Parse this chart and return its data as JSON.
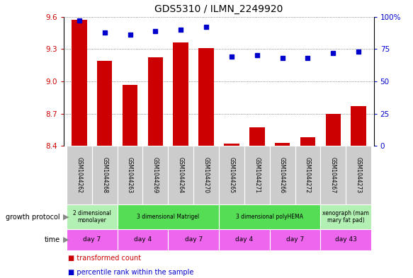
{
  "title": "GDS5310 / ILMN_2249920",
  "samples": [
    "GSM1044262",
    "GSM1044268",
    "GSM1044263",
    "GSM1044269",
    "GSM1044264",
    "GSM1044270",
    "GSM1044265",
    "GSM1044271",
    "GSM1044266",
    "GSM1044272",
    "GSM1044267",
    "GSM1044273"
  ],
  "bar_values": [
    9.57,
    9.19,
    8.97,
    9.22,
    9.36,
    9.31,
    8.42,
    8.57,
    8.43,
    8.48,
    8.7,
    8.77
  ],
  "dot_values": [
    97,
    88,
    86,
    89,
    90,
    92,
    69,
    70,
    68,
    68,
    72,
    73
  ],
  "ylim_left": [
    8.4,
    9.6
  ],
  "ylim_right": [
    0,
    100
  ],
  "yticks_left": [
    8.4,
    8.7,
    9.0,
    9.3,
    9.6
  ],
  "yticks_right": [
    0,
    25,
    50,
    75,
    100
  ],
  "bar_color": "#cc0000",
  "dot_color": "#0000cc",
  "grid_color": "#888888",
  "title_color": "#000000",
  "sample_bg_color": "#cccccc",
  "growth_protocol_groups": [
    {
      "label": "2 dimensional\nmonolayer",
      "start": 0,
      "end": 2,
      "color": "#b3f0b3"
    },
    {
      "label": "3 dimensional Matrigel",
      "start": 2,
      "end": 6,
      "color": "#55dd55"
    },
    {
      "label": "3 dimensional polyHEMA",
      "start": 6,
      "end": 10,
      "color": "#55dd55"
    },
    {
      "label": "xenograph (mam\nmary fat pad)",
      "start": 10,
      "end": 12,
      "color": "#b3f0b3"
    }
  ],
  "time_groups": [
    {
      "label": "day 7",
      "start": 0,
      "end": 2,
      "color": "#ee66ee"
    },
    {
      "label": "day 4",
      "start": 2,
      "end": 4,
      "color": "#ee66ee"
    },
    {
      "label": "day 7",
      "start": 4,
      "end": 6,
      "color": "#ee66ee"
    },
    {
      "label": "day 4",
      "start": 6,
      "end": 8,
      "color": "#ee66ee"
    },
    {
      "label": "day 7",
      "start": 8,
      "end": 10,
      "color": "#ee66ee"
    },
    {
      "label": "day 43",
      "start": 10,
      "end": 12,
      "color": "#ee66ee"
    }
  ],
  "left_axis_color": "#cc0000",
  "right_axis_color": "#0000cc",
  "legend_items": [
    {
      "label": "transformed count",
      "color": "#cc0000"
    },
    {
      "label": "percentile rank within the sample",
      "color": "#0000cc"
    }
  ]
}
